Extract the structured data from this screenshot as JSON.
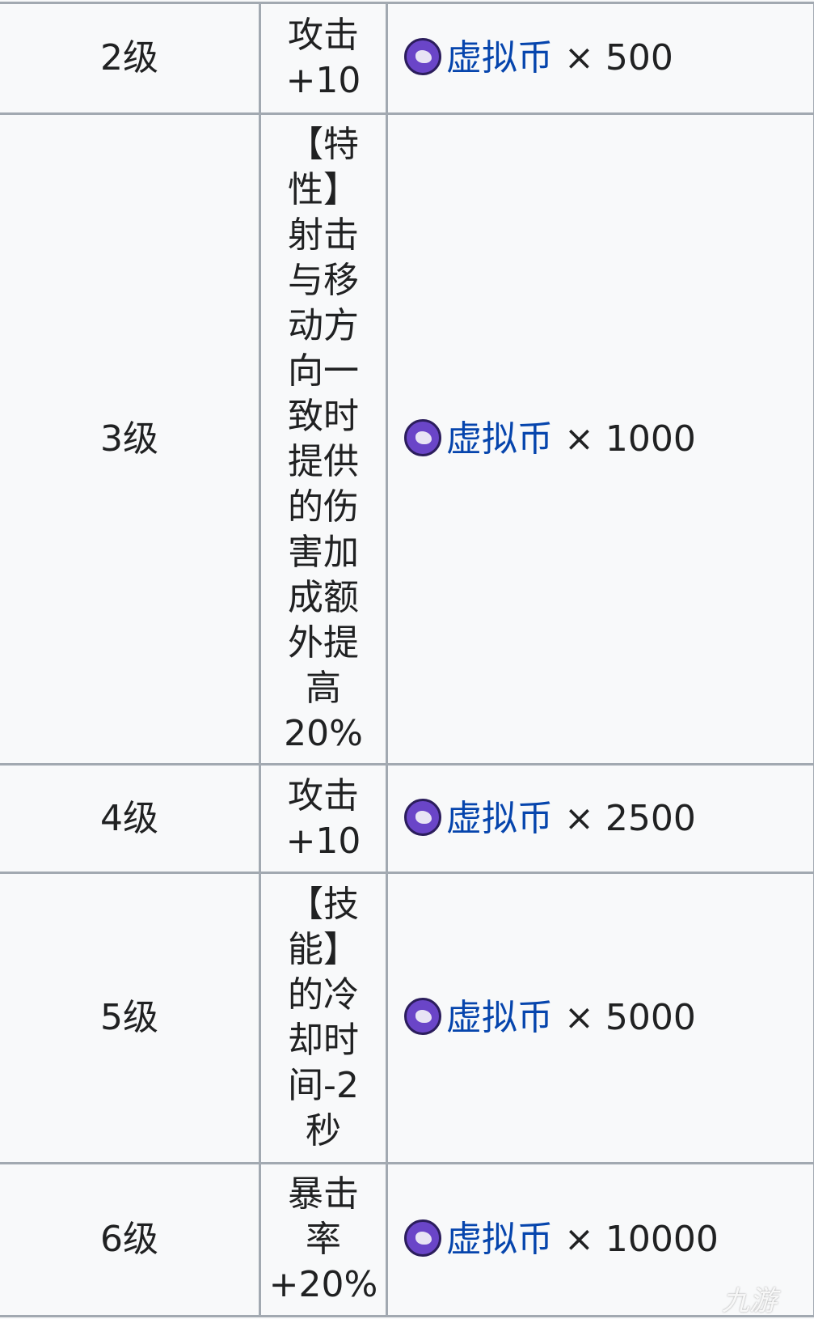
{
  "currency": {
    "name": "虚拟币",
    "icon": "virtual-coin-icon",
    "multiplier": "×",
    "link_color": "#0645ad"
  },
  "rows": [
    {
      "level": "2级",
      "effect": "攻击\n+10",
      "amount": "500"
    },
    {
      "level": "3级",
      "effect": "【特\n性】\n射击\n与移\n动方\n向一\n致时\n提供\n的伤\n害加\n成额\n外提\n高\n20%",
      "amount": "1000"
    },
    {
      "level": "4级",
      "effect": "攻击\n+10",
      "amount": "2500"
    },
    {
      "level": "5级",
      "effect": "【技\n能】\n的冷\n却时\n间-2\n秒",
      "amount": "5000"
    },
    {
      "level": "6级",
      "effect": "暴击\n率\n+20%",
      "amount": "10000"
    }
  ],
  "watermark": "九游"
}
